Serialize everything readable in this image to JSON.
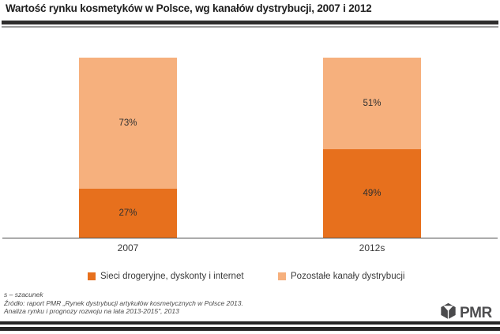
{
  "title": "Wartość rynku kosmetyków w Polsce, wg kanałów dystrybucji, 2007 i 2012",
  "chart_data": {
    "type": "bar",
    "stacked": true,
    "title": "Wartość rynku kosmetyków w Polsce, wg kanałów dystrybucji, 2007 i 2012",
    "categories": [
      "2007",
      "2012s"
    ],
    "series": [
      {
        "name": "Sieci drogeryjne, dyskonty i internet",
        "color": "#e7701d",
        "values": [
          27,
          49
        ],
        "labels": [
          "27%",
          "49%"
        ]
      },
      {
        "name": "Pozostałe kanały dystrybucji",
        "color": "#f6b07d",
        "values": [
          73,
          51
        ],
        "labels": [
          "73%",
          "51%"
        ]
      }
    ],
    "ylim": [
      0,
      100
    ],
    "unit": "%",
    "grid": false,
    "legend_position": "bottom"
  },
  "footnotes": {
    "line1": "s – szacunek",
    "line2": "Źródło: raport PMR „Rynek dystrybucji artykułów kosmetycznych w Polsce 2013.",
    "line3": "Analiza rynku i prognozy rozwoju na lata 2013-2015\", 2013"
  },
  "logo": {
    "text": "PMR",
    "icon": "pmr-cube-icon"
  }
}
